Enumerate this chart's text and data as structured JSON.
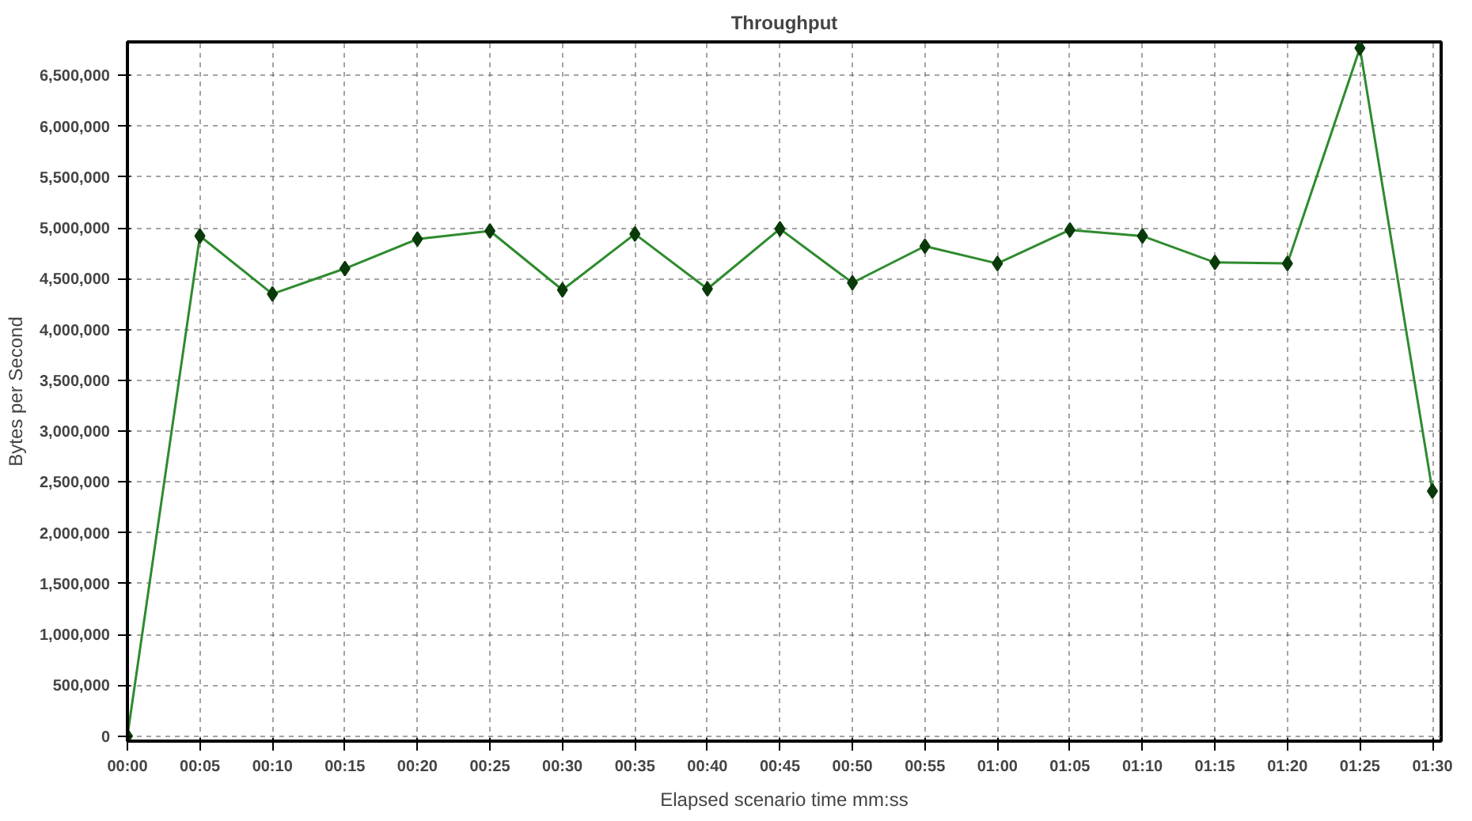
{
  "chart_data": {
    "type": "line",
    "title": "Throughput",
    "xlabel": "Elapsed scenario time mm:ss",
    "ylabel": "Bytes per Second",
    "x": [
      0,
      5,
      10,
      15,
      20,
      25,
      30,
      35,
      40,
      45,
      50,
      55,
      60,
      65,
      70,
      75,
      80,
      85,
      90
    ],
    "series": [
      {
        "color": "#2e8b2e",
        "values": [
          0,
          4920000,
          4350000,
          4600000,
          4890000,
          4970000,
          4390000,
          4940000,
          4400000,
          4990000,
          4460000,
          4820000,
          4650000,
          4980000,
          4920000,
          4660000,
          4650000,
          6770000,
          2410000
        ]
      }
    ],
    "xlim": [
      0,
      90.6
    ],
    "ylim": [
      -50000,
      6830000
    ],
    "xticks": [
      {
        "value": 0,
        "label": "00:00"
      },
      {
        "value": 5,
        "label": "00:05"
      },
      {
        "value": 10,
        "label": "00:10"
      },
      {
        "value": 15,
        "label": "00:15"
      },
      {
        "value": 20,
        "label": "00:20"
      },
      {
        "value": 25,
        "label": "00:25"
      },
      {
        "value": 30,
        "label": "00:30"
      },
      {
        "value": 35,
        "label": "00:35"
      },
      {
        "value": 40,
        "label": "00:40"
      },
      {
        "value": 45,
        "label": "00:45"
      },
      {
        "value": 50,
        "label": "00:50"
      },
      {
        "value": 55,
        "label": "00:55"
      },
      {
        "value": 60,
        "label": "01:00"
      },
      {
        "value": 65,
        "label": "01:05"
      },
      {
        "value": 70,
        "label": "01:10"
      },
      {
        "value": 75,
        "label": "01:15"
      },
      {
        "value": 80,
        "label": "01:20"
      },
      {
        "value": 85,
        "label": "01:25"
      },
      {
        "value": 90,
        "label": "01:30"
      }
    ],
    "yticks": [
      {
        "value": 0,
        "label": "0"
      },
      {
        "value": 500000,
        "label": "500,000"
      },
      {
        "value": 1000000,
        "label": "1,000,000"
      },
      {
        "value": 1500000,
        "label": "1,500,000"
      },
      {
        "value": 2000000,
        "label": "2,000,000"
      },
      {
        "value": 2500000,
        "label": "2,500,000"
      },
      {
        "value": 3000000,
        "label": "3,000,000"
      },
      {
        "value": 3500000,
        "label": "3,500,000"
      },
      {
        "value": 4000000,
        "label": "4,000,000"
      },
      {
        "value": 4500000,
        "label": "4,500,000"
      },
      {
        "value": 5000000,
        "label": "5,000,000"
      },
      {
        "value": 5500000,
        "label": "5,500,000"
      },
      {
        "value": 6000000,
        "label": "6,000,000"
      },
      {
        "value": 6500000,
        "label": "6,500,000"
      }
    ],
    "grid": true,
    "marker": "diamond",
    "line_style": "solid"
  }
}
